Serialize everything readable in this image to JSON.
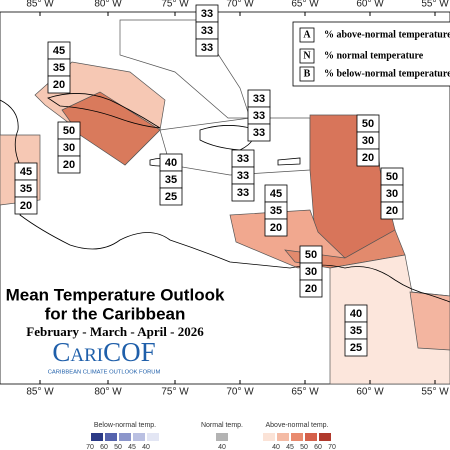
{
  "title": "Mean Temperature Outlook",
  "subtitle": "for the Caribbean",
  "period": "February - March - April - 2026",
  "logo": "CariCOF",
  "logo_subtitle": "CARIBBEAN CLIMATE OUTLOOK FORUM",
  "longitudes": [
    "85° W",
    "80° W",
    "75° W",
    "70° W",
    "65° W",
    "60° W",
    "55° W"
  ],
  "key": [
    {
      "letter": "A",
      "text": "% above-normal temperature"
    },
    {
      "letter": "N",
      "text": "% normal temperature"
    },
    {
      "letter": "B",
      "text": "% below-normal temperature"
    }
  ],
  "forecasts": [
    {
      "values": [
        33,
        33,
        33
      ]
    },
    {
      "values": [
        45,
        35,
        20
      ]
    },
    {
      "values": [
        33,
        33,
        33
      ]
    },
    {
      "values": [
        50,
        30,
        20
      ]
    },
    {
      "values": [
        50,
        30,
        20
      ]
    },
    {
      "values": [
        40,
        35,
        25
      ]
    },
    {
      "values": [
        33,
        33,
        33
      ]
    },
    {
      "values": [
        45,
        35,
        20
      ]
    },
    {
      "values": [
        50,
        30,
        20
      ]
    },
    {
      "values": [
        45,
        35,
        20
      ]
    },
    {
      "values": [
        50,
        30,
        20
      ]
    },
    {
      "values": [
        40,
        35,
        25
      ]
    }
  ],
  "colorbar": {
    "below": {
      "label": "Below-normal temp.",
      "ticks": [
        70,
        60,
        50,
        45,
        40
      ],
      "colors": [
        "#2b3a86",
        "#5563ad",
        "#8c96cb",
        "#bac0e2",
        "#e3e6f4"
      ]
    },
    "normal": {
      "label": "Normal temp.",
      "ticks": [
        40
      ],
      "colors": [
        "#b3b3b3"
      ]
    },
    "above": {
      "label": "Above-normal temp.",
      "ticks": [
        40,
        45,
        50,
        60,
        70
      ],
      "colors": [
        "#fbe3d7",
        "#f4bba5",
        "#e98a6e",
        "#d5604a",
        "#b0392c"
      ]
    }
  }
}
